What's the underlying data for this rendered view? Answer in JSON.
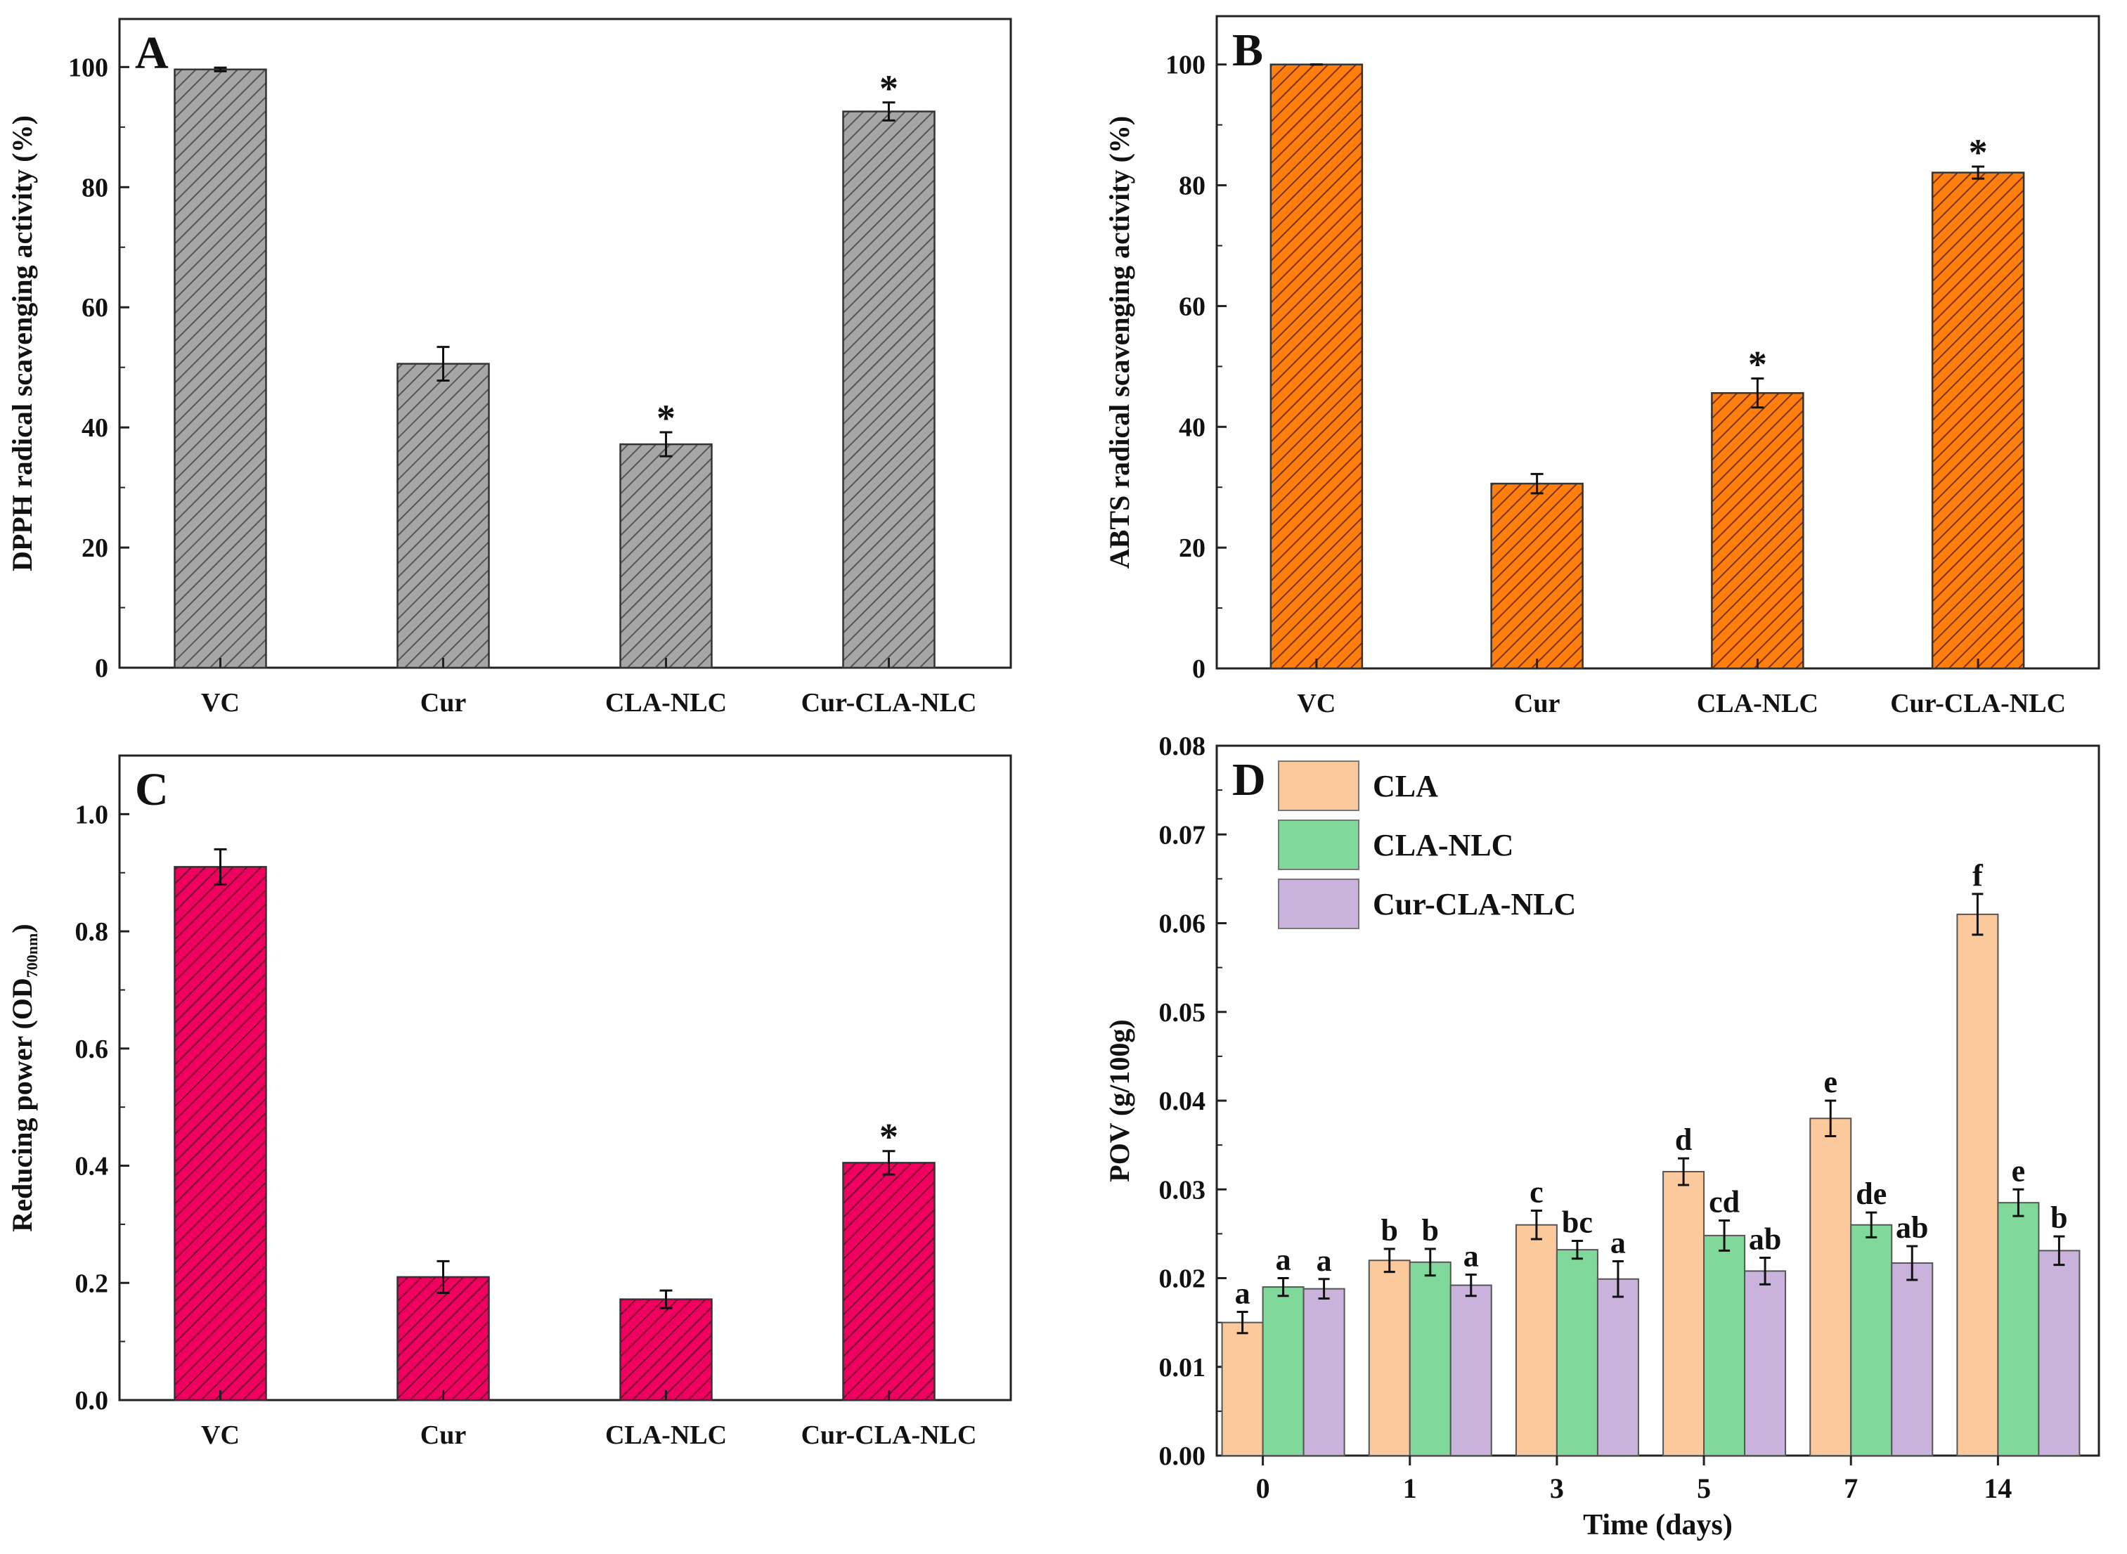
{
  "chart_data": [
    {
      "type": "bar",
      "panel": "A",
      "ylabel": "DPPH radical scavenging activity (%)",
      "categories": [
        "VC",
        "Cur",
        "CLA-NLC",
        "Cur-CLA-NLC"
      ],
      "values": [
        99.6,
        50.6,
        37.2,
        92.6
      ],
      "errors": [
        0.3,
        2.8,
        2.0,
        1.5
      ],
      "annotations": [
        "",
        "",
        "*",
        "*"
      ],
      "ylim": [
        0,
        108
      ],
      "yticks": [
        0,
        20,
        40,
        60,
        80,
        100
      ],
      "ytick_labels": [
        "0",
        "20",
        "40",
        "60",
        "80",
        "100"
      ],
      "color": "#a6a6a6",
      "hatch_color": "#555555"
    },
    {
      "type": "bar",
      "panel": "B",
      "ylabel": "ABTS radical scavenging activity (%)",
      "categories": [
        "VC",
        "Cur",
        "CLA-NLC",
        "Cur-CLA-NLC"
      ],
      "values": [
        100,
        30.6,
        45.6,
        82.1
      ],
      "errors": [
        0,
        1.6,
        2.4,
        1.0
      ],
      "annotations": [
        "",
        "",
        "*",
        "*"
      ],
      "ylim": [
        0,
        108
      ],
      "yticks": [
        0,
        20,
        40,
        60,
        80,
        100
      ],
      "ytick_labels": [
        "0",
        "20",
        "40",
        "60",
        "80",
        "100"
      ],
      "color": "#ff7f0e",
      "hatch_color": "#7a3300"
    },
    {
      "type": "bar",
      "panel": "C",
      "ylabel": "Reducing power (OD",
      "ylabel_sub": "700nm",
      "ylabel_end": ")",
      "categories": [
        "VC",
        "Cur",
        "CLA-NLC",
        "Cur-CLA-NLC"
      ],
      "values": [
        0.91,
        0.21,
        0.172,
        0.405
      ],
      "errors": [
        0.03,
        0.027,
        0.015,
        0.02
      ],
      "annotations": [
        "",
        "",
        "",
        "*"
      ],
      "ylim": [
        0,
        1.1
      ],
      "yticks": [
        0,
        0.2,
        0.4,
        0.6,
        0.8,
        1.0
      ],
      "ytick_labels": [
        "0.0",
        "0.2",
        "0.4",
        "0.6",
        "0.8",
        "1.0"
      ],
      "color": "#f0005f",
      "hatch_color": "#7a0030"
    },
    {
      "type": "bar",
      "panel": "D",
      "ylabel": "POV (g/100g)",
      "xlabel": "Time (days)",
      "categories": [
        "0",
        "1",
        "3",
        "5",
        "7",
        "14"
      ],
      "series": [
        {
          "name": "CLA",
          "color": "#fcc99c",
          "values": [
            0.015,
            0.022,
            0.026,
            0.032,
            0.038,
            0.061
          ],
          "errors": [
            0.0012,
            0.0013,
            0.0016,
            0.0015,
            0.002,
            0.0023
          ],
          "letters": [
            "a",
            "b",
            "c",
            "d",
            "e",
            "f"
          ]
        },
        {
          "name": "CLA-NLC",
          "color": "#80d99b",
          "values": [
            0.019,
            0.0218,
            0.0232,
            0.0248,
            0.026,
            0.0285
          ],
          "errors": [
            0.001,
            0.0015,
            0.001,
            0.0017,
            0.0014,
            0.0015
          ],
          "letters": [
            "a",
            "b",
            "bc",
            "cd",
            "de",
            "e"
          ]
        },
        {
          "name": "Cur-CLA-NLC",
          "color": "#c9b2dc",
          "values": [
            0.0188,
            0.0192,
            0.0199,
            0.0208,
            0.0217,
            0.0231
          ],
          "errors": [
            0.0011,
            0.0012,
            0.002,
            0.0015,
            0.0019,
            0.0016
          ],
          "letters": [
            "a",
            "a",
            "a",
            "ab",
            "ab",
            "b"
          ]
        }
      ],
      "ylim": [
        0,
        0.08
      ],
      "yticks": [
        0,
        0.01,
        0.02,
        0.03,
        0.04,
        0.05,
        0.06,
        0.07,
        0.08
      ],
      "ytick_labels": [
        "0.00",
        "0.01",
        "0.02",
        "0.03",
        "0.04",
        "0.05",
        "0.06",
        "0.07",
        "0.08"
      ],
      "legend": "top-left"
    }
  ]
}
